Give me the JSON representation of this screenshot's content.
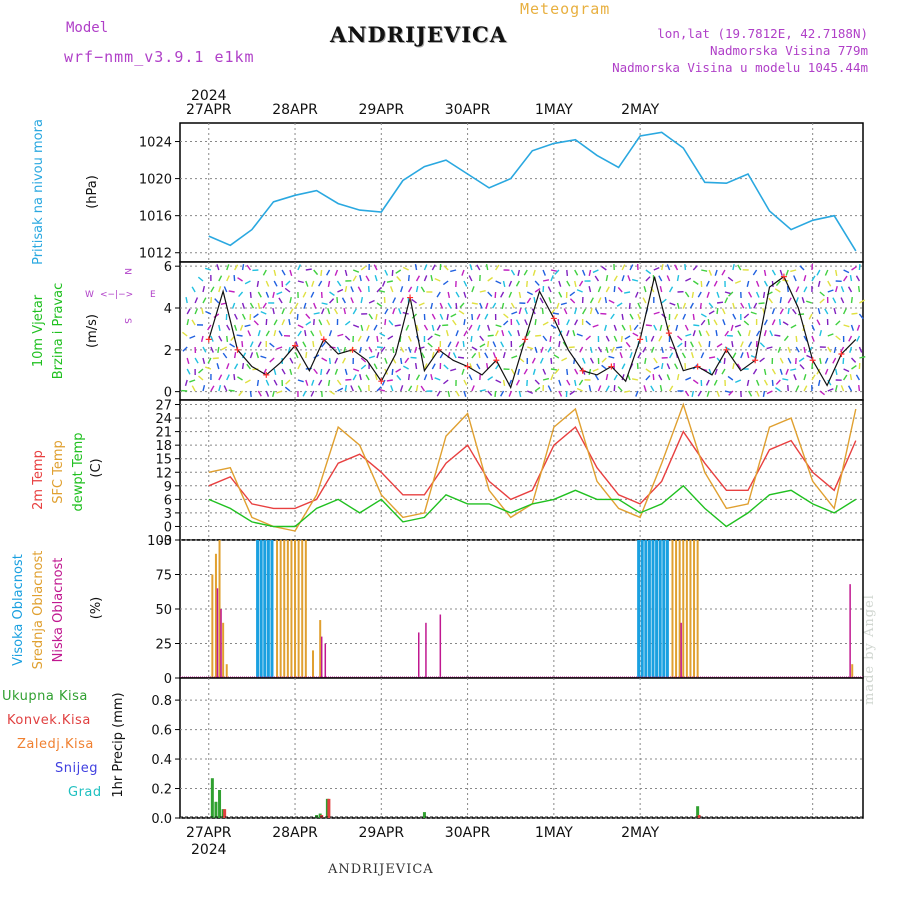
{
  "header": {
    "model_label": "Model",
    "model_version": "wrf−nmm_v3.9.1  e1km",
    "station": "ANDRIJEVICA",
    "meteogram_label": "Meteogram",
    "coords": "lon,lat (19.7812E, 42.7188N)",
    "elevation": "Nadmorska Visina 779m",
    "model_elevation": "Nadmorska Visina u modelu 1045.44m"
  },
  "footer": {
    "station": "ANDRIJEVICA",
    "credit": "made by Angel"
  },
  "colors": {
    "pressure": "#2aa8e0",
    "temp2m": "#e84040",
    "sfc_temp": "#e0a030",
    "dewpt": "#20c020",
    "cloud_high": "#1aa0e0",
    "cloud_mid": "#e0a030",
    "cloud_low": "#c01890",
    "precip_total": "#30a030",
    "precip_conv": "#e04040",
    "precip_frozen": "#f08030",
    "snow": "#4040e0",
    "graupel": "#20c0c0",
    "wind_speed": "#111111",
    "wind_dir_markers": "#ff3030"
  },
  "time_axis": {
    "top_year": "2024",
    "bottom_year": "2024",
    "days": [
      "27APR",
      "28APR",
      "29APR",
      "30APR",
      "1MAY",
      "2MAY"
    ]
  },
  "chart_data": [
    {
      "type": "line",
      "name": "pressure",
      "ylabel_lines": [
        "Pritisak na nivou mora",
        "(hPa)"
      ],
      "yticks": [
        1012,
        1016,
        1020,
        1024
      ],
      "ylim": [
        1011,
        1026
      ],
      "x": [
        0,
        6,
        12,
        18,
        24,
        30,
        36,
        42,
        48,
        54,
        60,
        66,
        72,
        78,
        84,
        90,
        96,
        102,
        108,
        114,
        120,
        126,
        132,
        138,
        144,
        150,
        156,
        162,
        168,
        174,
        180
      ],
      "values": [
        1013.8,
        1012.8,
        1014.5,
        1017.5,
        1018.2,
        1018.7,
        1017.3,
        1016.6,
        1016.4,
        1019.8,
        1021.3,
        1022.0,
        1020.5,
        1019.0,
        1020.0,
        1023.0,
        1023.8,
        1024.2,
        1022.5,
        1021.2,
        1024.6,
        1025.0,
        1023.3,
        1019.6,
        1019.5,
        1020.5,
        1016.5,
        1014.5,
        1015.5,
        1016.0,
        1012.2
      ]
    },
    {
      "type": "line",
      "name": "wind",
      "ylabel_lines": [
        "10m Vjetar",
        "Brzina i Pravac",
        "(m/s)"
      ],
      "compass": {
        "north": "N",
        "south": "S",
        "west": "W",
        "east": "E"
      },
      "yticks": [
        0,
        2,
        4,
        6
      ],
      "ylim": [
        -0.4,
        6.2
      ],
      "x": [
        0,
        4,
        8,
        12,
        16,
        20,
        24,
        28,
        32,
        36,
        40,
        44,
        48,
        52,
        56,
        60,
        64,
        68,
        72,
        76,
        80,
        84,
        88,
        92,
        96,
        100,
        104,
        108,
        112,
        116,
        120,
        124,
        128,
        132,
        136,
        140,
        144,
        148,
        152,
        156,
        160,
        164,
        168,
        172,
        176,
        180
      ],
      "values": [
        2.5,
        4.8,
        2.0,
        1.2,
        0.8,
        1.4,
        2.2,
        1.0,
        2.5,
        1.8,
        2.0,
        1.5,
        0.5,
        1.8,
        4.5,
        1.0,
        2.0,
        1.5,
        1.2,
        0.8,
        1.5,
        0.2,
        2.5,
        4.8,
        3.5,
        2.0,
        1.0,
        0.8,
        1.2,
        0.5,
        2.5,
        5.5,
        2.8,
        1.0,
        1.2,
        0.8,
        2.0,
        1.0,
        1.5,
        5.0,
        5.5,
        4.0,
        1.5,
        0.3,
        1.8,
        2.5
      ]
    },
    {
      "type": "line",
      "name": "temperature",
      "ylabel_lines": [
        "2m Temp",
        "SFC Temp",
        "dewpt Temp",
        "(C)"
      ],
      "yticks": [
        -3,
        0,
        3,
        6,
        9,
        12,
        15,
        18,
        21,
        24,
        27
      ],
      "ylim": [
        -3,
        28
      ],
      "x": [
        0,
        6,
        12,
        18,
        24,
        30,
        36,
        42,
        48,
        54,
        60,
        66,
        72,
        78,
        84,
        90,
        96,
        102,
        108,
        114,
        120,
        126,
        132,
        138,
        144,
        150,
        156,
        162,
        168,
        174,
        180
      ],
      "series": [
        {
          "name": "2m Temp",
          "values": [
            9,
            11,
            5,
            4,
            4,
            6,
            14,
            16,
            12,
            7,
            7,
            14,
            18,
            10,
            6,
            8,
            18,
            22,
            13,
            7,
            5,
            10,
            21,
            14,
            8,
            8,
            17,
            19,
            12,
            8,
            19
          ]
        },
        {
          "name": "SFC Temp",
          "values": [
            12,
            13,
            2,
            0,
            -1,
            7,
            22,
            18,
            7,
            2,
            3,
            20,
            25,
            8,
            2,
            5,
            22,
            26,
            10,
            4,
            2,
            14,
            27,
            12,
            4,
            5,
            22,
            24,
            10,
            4,
            26
          ]
        },
        {
          "name": "dewpt Temp",
          "values": [
            6,
            4,
            1,
            0,
            0,
            4,
            6,
            3,
            6,
            1,
            2,
            7,
            5,
            5,
            3,
            5,
            6,
            8,
            6,
            6,
            3,
            5,
            9,
            4,
            0,
            3,
            7,
            8,
            5,
            3,
            6
          ]
        }
      ]
    },
    {
      "type": "bar",
      "name": "clouds",
      "ylabel_lines": [
        "Visoka Oblacnost",
        "Srednja Oblacnost",
        "Niska Oblacnost",
        "(%)"
      ],
      "yticks": [
        0,
        25,
        50,
        75,
        100
      ],
      "ylim": [
        0,
        100
      ],
      "series": [
        {
          "name": "Visoka Oblacnost",
          "x": [
            14,
            15,
            16,
            17,
            18,
            120,
            121,
            122,
            123,
            124,
            125,
            126,
            127,
            128
          ],
          "values": [
            100,
            100,
            100,
            100,
            100,
            100,
            100,
            100,
            100,
            100,
            100,
            100,
            100,
            100
          ]
        },
        {
          "name": "Srednja Oblacnost",
          "x": [
            1,
            2,
            3,
            4,
            5,
            19,
            20,
            21,
            22,
            23,
            24,
            25,
            26,
            27,
            29,
            31,
            129,
            130,
            131,
            132,
            133,
            134,
            135,
            136,
            179
          ],
          "values": [
            75,
            90,
            100,
            40,
            10,
            100,
            100,
            100,
            100,
            100,
            100,
            100,
            100,
            100,
            20,
            42,
            100,
            100,
            100,
            100,
            100,
            100,
            100,
            100,
            10
          ]
        },
        {
          "name": "Niska Oblacnost",
          "x": [
            2,
            3,
            31,
            32,
            34,
            58,
            60,
            64,
            131,
            178
          ],
          "values": [
            65,
            50,
            30,
            25,
            8,
            33,
            40,
            46,
            40,
            68
          ]
        }
      ]
    },
    {
      "type": "bar",
      "name": "precipitation",
      "ylabel_lines": [
        "1hr Precip (mm)"
      ],
      "legend": [
        "Ukupna Kisa",
        "Konvek.Kisa",
        "Zaledj.Kisa",
        "Snijeg",
        "Grad"
      ],
      "yticks": [
        0,
        0.2,
        0.4,
        0.6,
        0.8
      ],
      "ylim": [
        0,
        0.95
      ],
      "series": [
        {
          "name": "Ukupna Kisa",
          "x": [
            1,
            2,
            3,
            4,
            30,
            31,
            33,
            60,
            136
          ],
          "values": [
            0.27,
            0.11,
            0.19,
            0.06,
            0.02,
            0.03,
            0.13,
            0.04,
            0.08
          ]
        },
        {
          "name": "Konvek.Kisa",
          "x": [
            4,
            31,
            33,
            136
          ],
          "values": [
            0.06,
            0.02,
            0.13,
            0.02
          ]
        }
      ]
    }
  ]
}
